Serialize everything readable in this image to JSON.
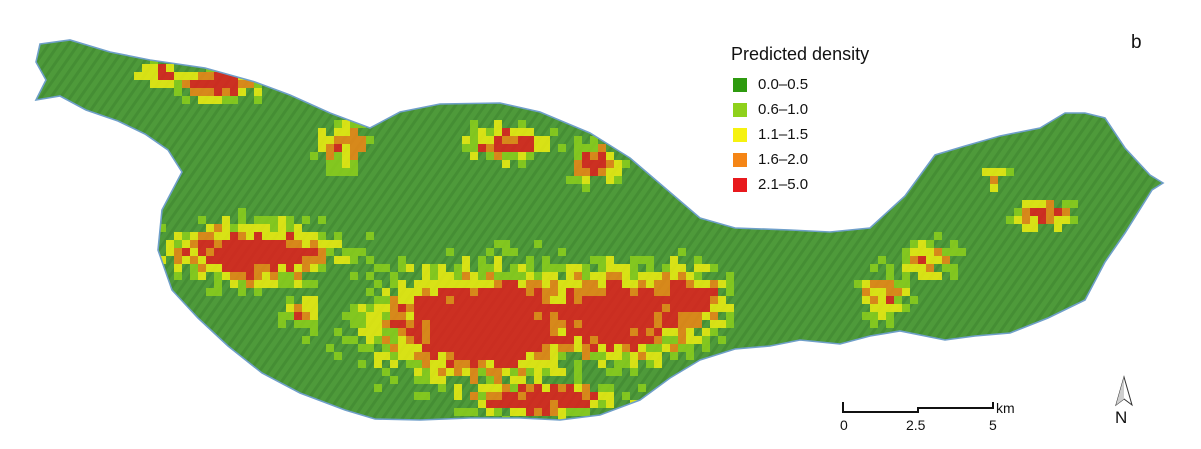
{
  "panel_letter": "b",
  "legend": {
    "title": "Predicted density",
    "classes": [
      {
        "label": "0.0–0.5",
        "color": "#2e9a0e"
      },
      {
        "label": "0.6–1.0",
        "color": "#8fd11b"
      },
      {
        "label": "1.1–1.5",
        "color": "#f6f20f"
      },
      {
        "label": "1.6–2.0",
        "color": "#f58515"
      },
      {
        "label": "2.1–5.0",
        "color": "#e8191d"
      }
    ]
  },
  "scale_bar": {
    "unit": "km",
    "ticks": [
      "0",
      "2.5",
      "5"
    ]
  },
  "north_arrow": {
    "label": "N"
  },
  "colors": {
    "land_base": "#4e9a3a",
    "coastline": "#6f9fc9"
  }
}
